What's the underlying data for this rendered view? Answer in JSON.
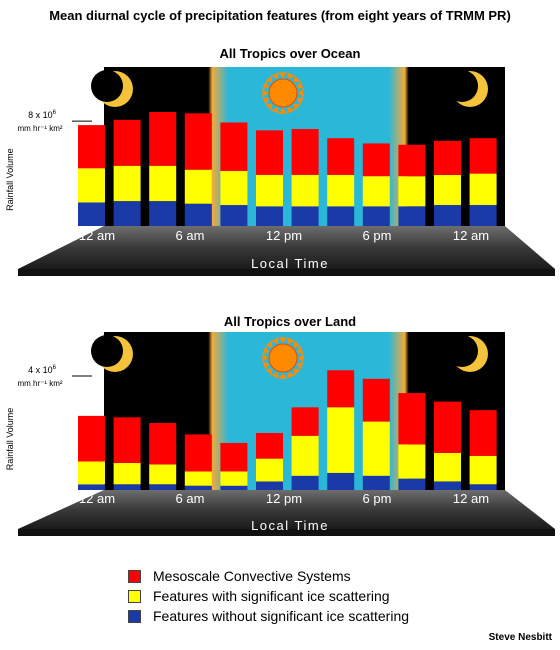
{
  "title": "Mean diurnal cycle of precipitation features (from eight years of TRMM PR)",
  "credit": "Steve Nesbitt",
  "colors": {
    "mcs": "#ff0000",
    "ice": "#ffff00",
    "noice": "#1a3aa8",
    "night": "#000000",
    "day": "#2bb8d8",
    "twilight": "#f3a93a",
    "sun": "#ff8a00",
    "moon": "#f5c33b"
  },
  "icons": [
    "moon-icon",
    "sun-icon",
    "moon-icon"
  ],
  "legend": [
    {
      "label": "Mesoscale Convective Systems",
      "color": "#ff0000"
    },
    {
      "label": "Features with significant ice scattering",
      "color": "#ffff00"
    },
    {
      "label": "Features without significant ice scattering",
      "color": "#1a3aa8"
    }
  ],
  "chart_data": [
    {
      "type": "bar",
      "stacked": true,
      "title": "All Tropics over Ocean",
      "xlabel": "Local Time",
      "ylabel": "Rainfall Volume",
      "reference_label_main": "8 x 10",
      "reference_label_exp": "6",
      "reference_label_units": "mm hr⁻¹ km²",
      "reference_value": 8,
      "ymax": 8.7,
      "x_tick_labels": [
        "12 am",
        "6 am",
        "12 pm",
        "6 pm",
        "12 am"
      ],
      "categories": [
        "0",
        "2",
        "4",
        "6",
        "8",
        "10",
        "12",
        "14",
        "16",
        "18",
        "20",
        "22"
      ],
      "series": [
        {
          "name": "Features without significant ice scattering",
          "values": [
            1.8,
            1.9,
            1.9,
            1.7,
            1.6,
            1.5,
            1.5,
            1.5,
            1.5,
            1.5,
            1.6,
            1.6
          ]
        },
        {
          "name": "Features with significant ice scattering",
          "values": [
            2.6,
            2.7,
            2.7,
            2.6,
            2.6,
            2.4,
            2.4,
            2.4,
            2.3,
            2.3,
            2.3,
            2.4
          ]
        },
        {
          "name": "Mesoscale Convective Systems",
          "values": [
            3.3,
            3.5,
            4.1,
            4.3,
            3.7,
            3.4,
            3.5,
            2.8,
            2.5,
            2.4,
            2.6,
            2.7
          ]
        }
      ]
    },
    {
      "type": "bar",
      "stacked": true,
      "title": "All Tropics over Land",
      "xlabel": "Local Time",
      "ylabel": "Rainfall Volume",
      "reference_label_main": "4 x 10",
      "reference_label_exp": "6",
      "reference_label_units": "mm hr⁻¹ km²",
      "reference_value": 4,
      "ymax": 4.35,
      "x_tick_labels": [
        "12 am",
        "6 am",
        "12 pm",
        "6 pm",
        "12 am"
      ],
      "categories": [
        "0",
        "2",
        "4",
        "6",
        "8",
        "10",
        "12",
        "14",
        "16",
        "18",
        "20",
        "22"
      ],
      "series": [
        {
          "name": "Features without significant ice scattering",
          "values": [
            0.2,
            0.2,
            0.2,
            0.15,
            0.15,
            0.3,
            0.5,
            0.6,
            0.5,
            0.4,
            0.3,
            0.2
          ]
        },
        {
          "name": "Features with significant ice scattering",
          "values": [
            0.8,
            0.75,
            0.7,
            0.5,
            0.5,
            0.8,
            1.4,
            2.3,
            1.9,
            1.2,
            1.0,
            1.0
          ]
        },
        {
          "name": "Mesoscale Convective Systems",
          "values": [
            1.6,
            1.6,
            1.45,
            1.3,
            1.0,
            0.9,
            1.0,
            1.3,
            1.5,
            1.8,
            1.8,
            1.6
          ]
        }
      ]
    }
  ]
}
